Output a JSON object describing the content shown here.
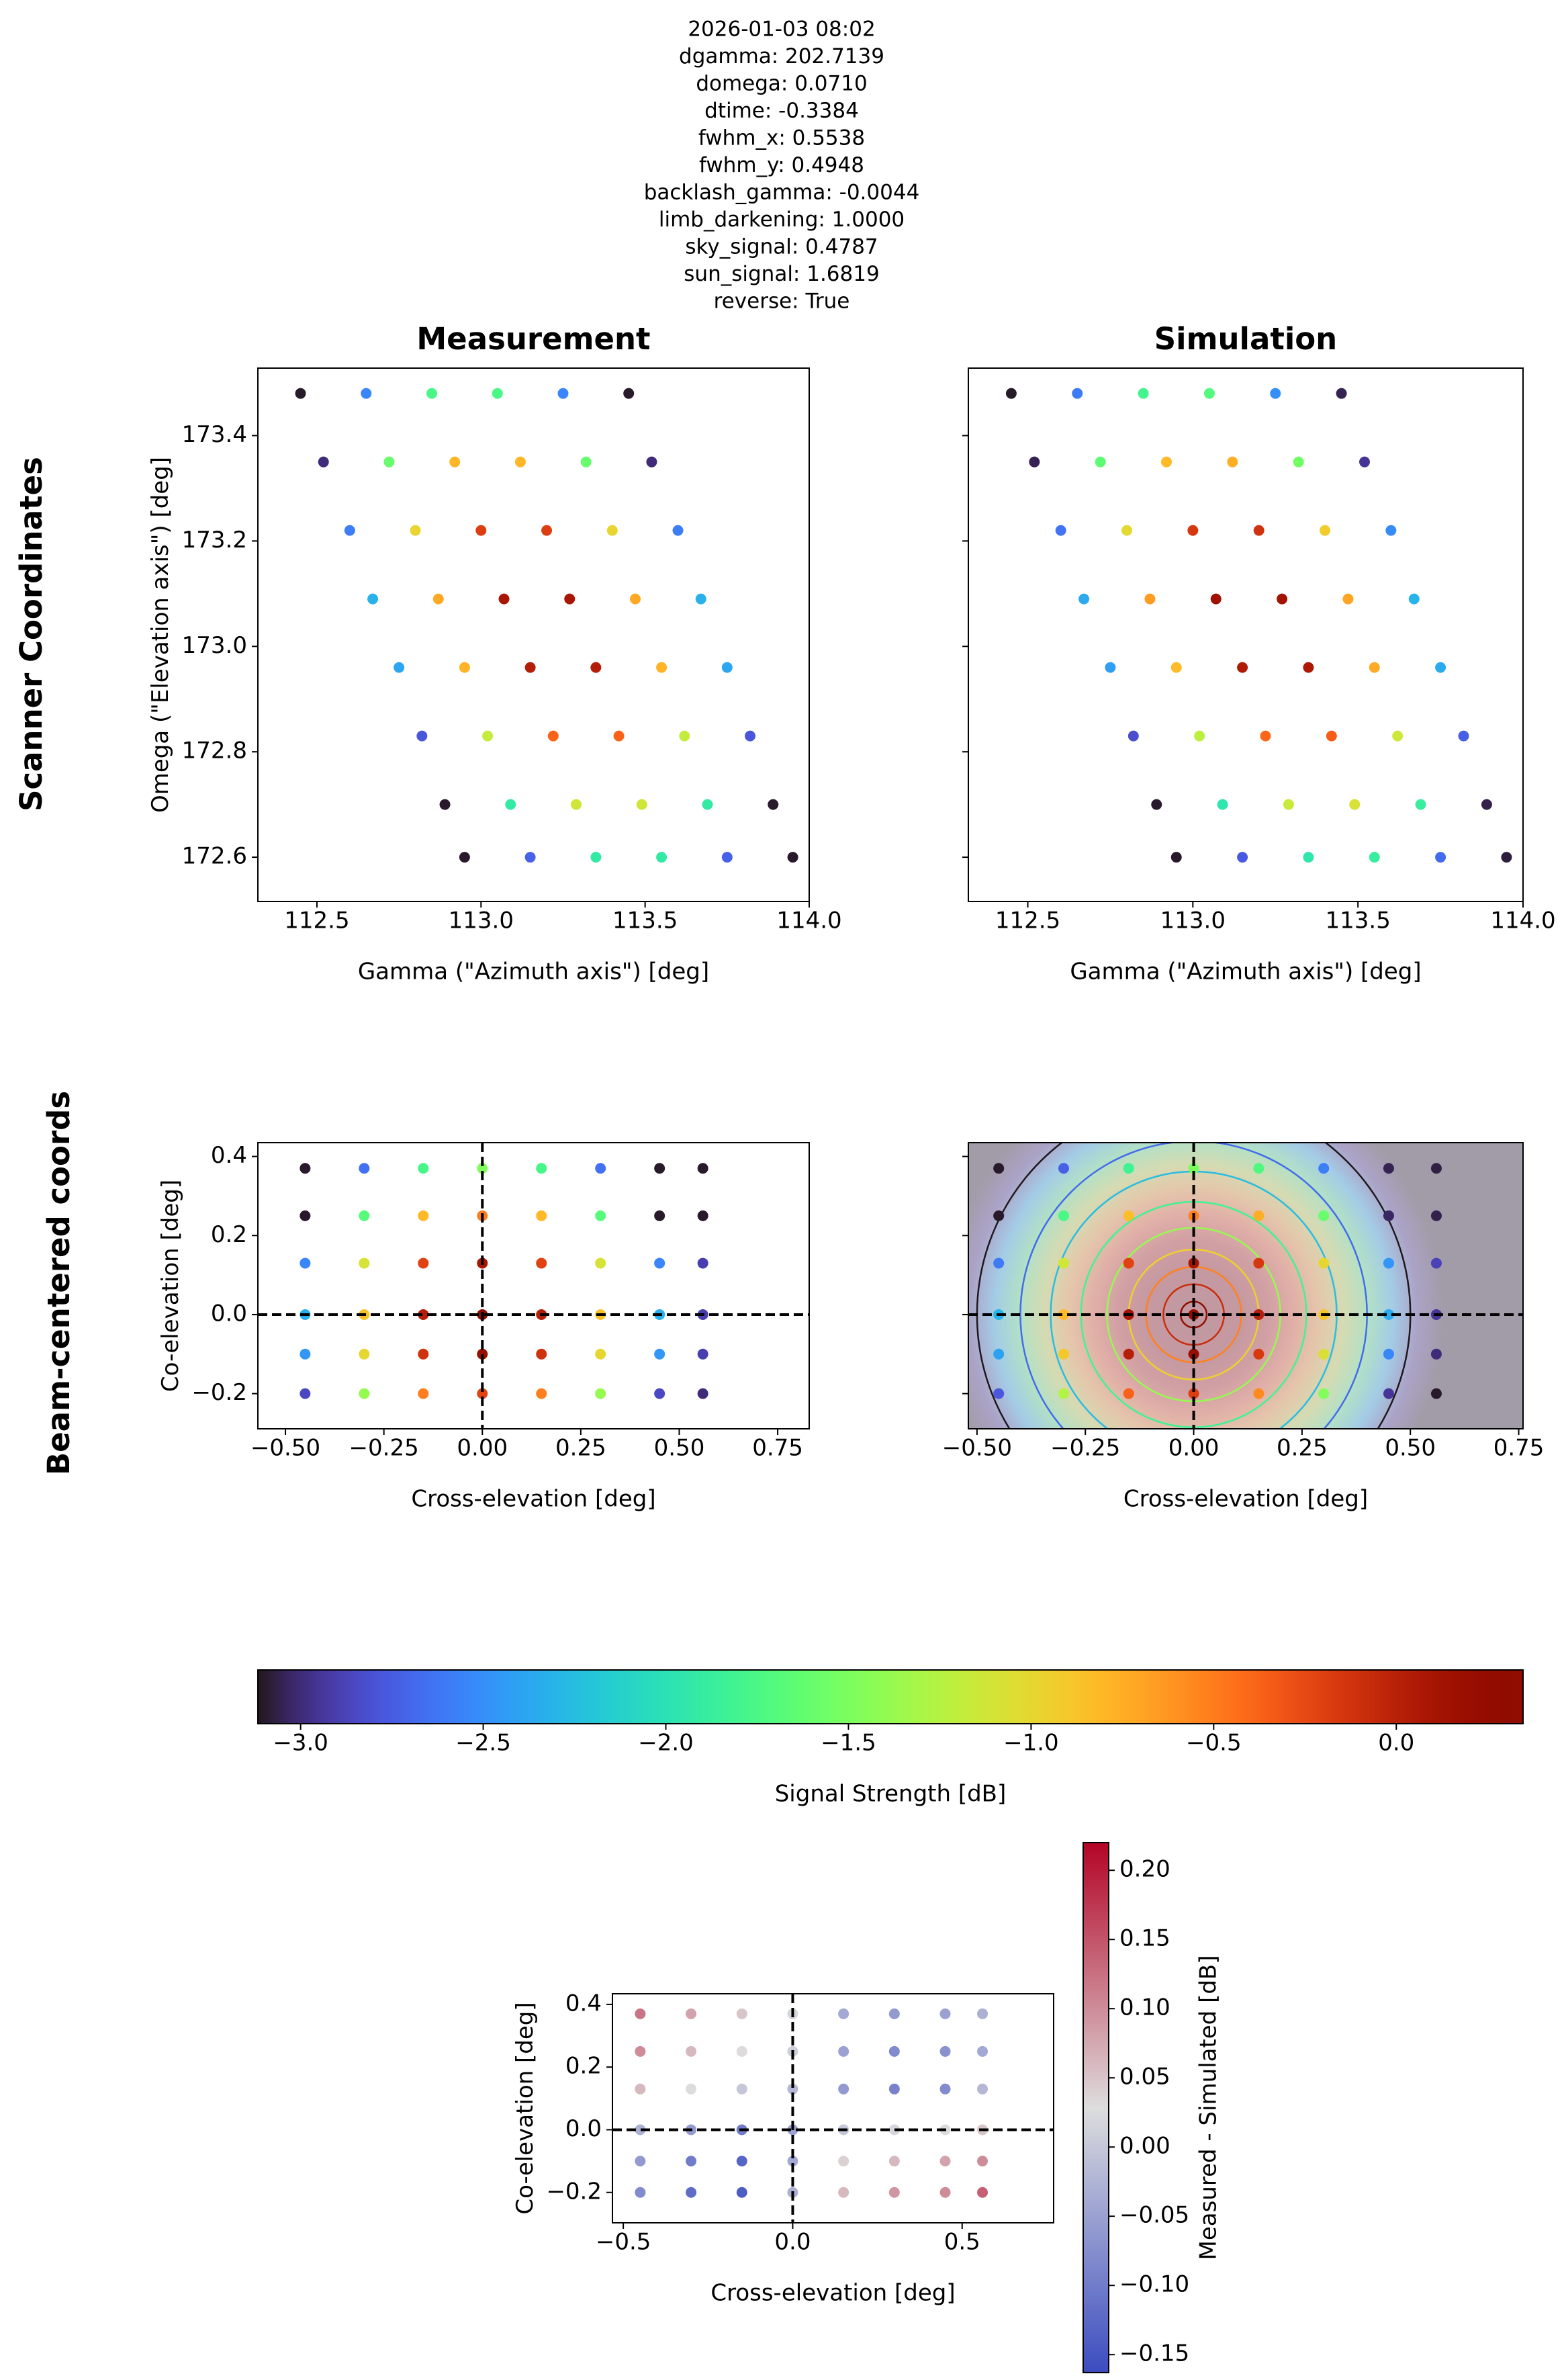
{
  "figure": {
    "suptitle": [
      "2026-01-03 08:02",
      "dgamma: 202.7139",
      "domega: 0.0710",
      "dtime: -0.3384",
      "fwhm_x: 0.5538",
      "fwhm_y: 0.4948",
      "backlash_gamma: -0.0044",
      "limb_darkening: 1.0000",
      "sky_signal: 0.4787",
      "sun_signal: 1.6819",
      "reverse: True"
    ],
    "row_labels": [
      "Scanner Coordinates",
      "Beam-centered coords"
    ]
  },
  "chart_data": [
    {
      "type": "scatter",
      "title": "Measurement",
      "xlabel": "Gamma (\"Azimuth axis\") [deg]",
      "ylabel": "Omega (\"Elevation axis\") [deg]",
      "colormap": "turbo",
      "xlim": [
        112.32,
        114.0
      ],
      "ylim": [
        172.516,
        173.528
      ],
      "xticks": [
        112.5,
        {
          "value": 113,
          "label": "113.0"
        },
        113.5,
        {
          "value": 114,
          "label": "114.0"
        }
      ],
      "yticks": [
        172.6,
        172.8,
        {
          "value": 173,
          "label": "173.0"
        },
        173.2,
        173.4
      ],
      "x": [
        112.45,
        112.65,
        112.85,
        113.05,
        113.25,
        113.45,
        112.52,
        112.72,
        112.92,
        113.12,
        113.32,
        113.52,
        112.6,
        112.8,
        113,
        113.2,
        113.4,
        113.6,
        112.67,
        112.87,
        113.07,
        113.27,
        113.47,
        113.67,
        112.75,
        112.95,
        113.15,
        113.35,
        113.55,
        113.75,
        112.82,
        113.02,
        113.22,
        113.42,
        113.62,
        113.82,
        112.89,
        113.09,
        113.29,
        113.49,
        113.69,
        113.89,
        112.95,
        113.15,
        113.35,
        113.55,
        113.75,
        113.95
      ],
      "y": [
        173.48,
        173.48,
        173.48,
        173.48,
        173.48,
        173.48,
        173.35,
        173.35,
        173.35,
        173.35,
        173.35,
        173.35,
        173.22,
        173.22,
        173.22,
        173.22,
        173.22,
        173.22,
        173.09,
        173.09,
        173.09,
        173.09,
        173.09,
        173.09,
        172.96,
        172.96,
        172.96,
        172.96,
        172.96,
        172.96,
        172.83,
        172.83,
        172.83,
        172.83,
        172.83,
        172.83,
        172.7,
        172.7,
        172.7,
        172.7,
        172.7,
        172.7,
        172.6,
        172.6,
        172.6,
        172.6,
        172.6,
        172.6
      ],
      "c": [
        -3.1,
        -2.55,
        -1.75,
        -1.75,
        -2.55,
        -3.1,
        -3.0,
        -1.6,
        -0.8,
        -0.8,
        -1.6,
        -3.0,
        -2.59,
        -0.99,
        -0.19,
        -0.19,
        -0.99,
        -2.59,
        -2.32,
        -0.72,
        0.08,
        0.08,
        -0.72,
        -2.32,
        -2.38,
        -0.78,
        0.02,
        0.02,
        -0.78,
        -2.38,
        -2.78,
        -1.18,
        -0.38,
        -0.38,
        -1.18,
        -2.78,
        -3.1,
        -1.92,
        -1.12,
        -1.12,
        -1.92,
        -3.1,
        -3.1,
        -2.72,
        -1.92,
        -1.92,
        -2.72,
        -3.1
      ]
    },
    {
      "type": "scatter",
      "title": "Simulation",
      "xlabel": "Gamma (\"Azimuth axis\") [deg]",
      "colormap": "turbo",
      "ytick_labels": false,
      "xlim": [
        112.32,
        114.0
      ],
      "ylim": [
        172.516,
        173.528
      ],
      "xticks": [
        112.5,
        {
          "value": 113,
          "label": "113.0"
        },
        113.5,
        {
          "value": 114,
          "label": "114.0"
        }
      ],
      "yticks": [
        172.6,
        172.8,
        173,
        173.2,
        173.4
      ],
      "x": [
        112.45,
        112.65,
        112.85,
        113.05,
        113.25,
        113.45,
        112.52,
        112.72,
        112.92,
        113.12,
        113.32,
        113.52,
        112.6,
        112.8,
        113,
        113.2,
        113.4,
        113.6,
        112.67,
        112.87,
        113.07,
        113.27,
        113.47,
        113.67,
        112.75,
        112.95,
        113.15,
        113.35,
        113.55,
        113.75,
        112.82,
        113.02,
        113.22,
        113.42,
        113.62,
        113.82,
        112.89,
        113.09,
        113.29,
        113.49,
        113.69,
        113.89,
        112.95,
        113.15,
        113.35,
        113.55,
        113.75,
        113.95
      ],
      "y": [
        173.48,
        173.48,
        173.48,
        173.48,
        173.48,
        173.48,
        173.35,
        173.35,
        173.35,
        173.35,
        173.35,
        173.35,
        173.22,
        173.22,
        173.22,
        173.22,
        173.22,
        173.22,
        173.09,
        173.09,
        173.09,
        173.09,
        173.09,
        173.09,
        172.96,
        172.96,
        172.96,
        172.96,
        172.96,
        172.96,
        172.83,
        172.83,
        172.83,
        172.83,
        172.83,
        172.83,
        172.7,
        172.7,
        172.7,
        172.7,
        172.7,
        172.7,
        172.6,
        172.6,
        172.6,
        172.6,
        172.6,
        172.6
      ],
      "c": [
        -3.1,
        -2.6,
        -1.8,
        -1.7,
        -2.5,
        -3.05,
        -3.05,
        -1.65,
        -0.82,
        -0.76,
        -1.55,
        -2.95,
        -2.64,
        -1.02,
        -0.15,
        -0.12,
        -0.93,
        -2.52,
        -2.36,
        -0.66,
        0.14,
        0.12,
        -0.7,
        -2.3,
        -2.42,
        -0.82,
        0.05,
        0.06,
        -0.74,
        -2.35,
        -2.82,
        -1.22,
        -0.4,
        -0.35,
        -1.14,
        -2.74,
        -3.1,
        -1.96,
        -1.16,
        -1.08,
        -1.88,
        -3.06,
        -3.1,
        -2.76,
        -1.96,
        -1.88,
        -2.68,
        -3.08
      ]
    },
    {
      "type": "scatter",
      "xlabel": "Cross-elevation [deg]",
      "ylabel": "Co-elevation [deg]",
      "colormap": "turbo",
      "crosshair": true,
      "xlim": [
        -0.57,
        0.83
      ],
      "ylim": [
        -0.289,
        0.435
      ],
      "xticks": [
        {
          "value": -0.5,
          "label": "−0.50"
        },
        {
          "value": -0.25,
          "label": "−0.25"
        },
        {
          "value": 0,
          "label": "0.00"
        },
        0.25,
        {
          "value": 0.5,
          "label": "0.50"
        },
        0.75
      ],
      "yticks": [
        {
          "value": -0.2,
          "label": "−0.2"
        },
        {
          "value": 0,
          "label": "0.0"
        },
        0.2,
        0.4
      ],
      "x": [
        -0.45,
        -0.3,
        -0.15,
        0,
        0.15,
        0.3,
        0.45,
        0.56,
        -0.45,
        -0.3,
        -0.15,
        0,
        0.15,
        0.3,
        0.45,
        0.56,
        -0.45,
        -0.3,
        -0.15,
        0,
        0.15,
        0.3,
        0.45,
        0.56,
        -0.45,
        -0.3,
        -0.15,
        0,
        0.15,
        0.3,
        0.45,
        0.56,
        -0.45,
        -0.3,
        -0.15,
        0,
        0.15,
        0.3,
        0.45,
        0.56,
        -0.45,
        -0.3,
        -0.15,
        0,
        0.15,
        0.3,
        0.45,
        0.56
      ],
      "y": [
        0.37,
        0.37,
        0.37,
        0.37,
        0.37,
        0.37,
        0.37,
        0.37,
        0.25,
        0.25,
        0.25,
        0.25,
        0.25,
        0.25,
        0.25,
        0.25,
        0.13,
        0.13,
        0.13,
        0.13,
        0.13,
        0.13,
        0.13,
        0.13,
        0,
        0,
        0,
        0,
        0,
        0,
        0,
        0,
        -0.1,
        -0.1,
        -0.1,
        -0.1,
        -0.1,
        -0.1,
        -0.1,
        -0.1,
        -0.2,
        -0.2,
        -0.2,
        -0.2,
        -0.2,
        -0.2,
        -0.2,
        -0.2
      ],
      "c": [
        -3.1,
        -2.65,
        -1.77,
        -1.48,
        -1.77,
        -2.65,
        -3.1,
        -3.1,
        -3.1,
        -1.68,
        -0.81,
        -0.51,
        -0.81,
        -1.68,
        -3.1,
        -3.1,
        -2.55,
        -1.09,
        -0.21,
        0.08,
        -0.21,
        -1.09,
        -2.55,
        -2.9,
        -2.33,
        -0.87,
        0.01,
        0.3,
        0.01,
        -0.87,
        -2.33,
        -2.9,
        -2.46,
        -1.0,
        -0.12,
        0.17,
        -0.12,
        -1.0,
        -2.46,
        -2.9,
        -2.85,
        -1.39,
        -0.51,
        -0.22,
        -0.51,
        -1.39,
        -2.85,
        -3.0
      ]
    },
    {
      "type": "scatter",
      "xlabel": "Cross-elevation [deg]",
      "colormap": "turbo",
      "crosshair": true,
      "model_background": true,
      "ytick_labels": false,
      "xlim": [
        -0.52,
        0.76
      ],
      "ylim": [
        -0.289,
        0.435
      ],
      "xticks": [
        {
          "value": -0.5,
          "label": "−0.50"
        },
        {
          "value": -0.25,
          "label": "−0.25"
        },
        {
          "value": 0,
          "label": "0.00"
        },
        0.25,
        {
          "value": 0.5,
          "label": "0.50"
        },
        0.75
      ],
      "yticks": [
        -0.2,
        0,
        0.2,
        0.4
      ],
      "x": [
        -0.45,
        -0.3,
        -0.15,
        0,
        0.15,
        0.3,
        0.45,
        0.56,
        -0.45,
        -0.3,
        -0.15,
        0,
        0.15,
        0.3,
        0.45,
        0.56,
        -0.45,
        -0.3,
        -0.15,
        0,
        0.15,
        0.3,
        0.45,
        0.56,
        -0.45,
        -0.3,
        -0.15,
        0,
        0.15,
        0.3,
        0.45,
        0.56,
        -0.45,
        -0.3,
        -0.15,
        0,
        0.15,
        0.3,
        0.45,
        0.56,
        -0.45,
        -0.3,
        -0.15,
        0,
        0.15,
        0.3,
        0.45,
        0.56
      ],
      "y": [
        0.37,
        0.37,
        0.37,
        0.37,
        0.37,
        0.37,
        0.37,
        0.37,
        0.25,
        0.25,
        0.25,
        0.25,
        0.25,
        0.25,
        0.25,
        0.25,
        0.13,
        0.13,
        0.13,
        0.13,
        0.13,
        0.13,
        0.13,
        0.13,
        0,
        0,
        0,
        0,
        0,
        0,
        0,
        0,
        -0.1,
        -0.1,
        -0.1,
        -0.1,
        -0.1,
        -0.1,
        -0.1,
        -0.1,
        -0.2,
        -0.2,
        -0.2,
        -0.2,
        -0.2,
        -0.2,
        -0.2,
        -0.2
      ],
      "c": [
        -3.1,
        -2.73,
        -1.82,
        -1.5,
        -1.73,
        -2.59,
        -3.05,
        -3.07,
        -3.1,
        -1.74,
        -0.84,
        -0.52,
        -0.76,
        -1.6,
        -3.03,
        -3.06,
        -2.61,
        -1.12,
        -0.21,
        0.1,
        -0.15,
        -1.0,
        -2.47,
        -2.88,
        -2.3,
        -0.81,
        0.11,
        0.35,
        0.01,
        -0.89,
        -2.36,
        -2.95,
        -2.4,
        -0.9,
        0.01,
        0.21,
        -0.16,
        -1.06,
        -2.54,
        -3.0,
        -2.77,
        -1.27,
        -0.37,
        -0.19,
        -0.57,
        -1.48,
        -2.95,
        -3.1
      ]
    },
    {
      "type": "colorbar",
      "orientation": "horizontal",
      "colormap": "turbo",
      "label": "Signal Strength [dB]",
      "clim": [
        -3.117,
        0.347
      ],
      "ticks": [
        {
          "value": -3,
          "label": "−3.0"
        },
        {
          "value": -2.5,
          "label": "−2.5"
        },
        {
          "value": -2,
          "label": "−2.0"
        },
        {
          "value": -1.5,
          "label": "−1.5"
        },
        {
          "value": -1,
          "label": "−1.0"
        },
        {
          "value": -0.5,
          "label": "−0.5"
        },
        {
          "value": 0,
          "label": "0.0"
        }
      ]
    },
    {
      "type": "scatter",
      "xlabel": "Cross-elevation [deg]",
      "ylabel": "Co-elevation [deg]",
      "colormap": "coolwarm",
      "crosshair": true,
      "xlim": [
        -0.532,
        0.77
      ],
      "ylim": [
        -0.297,
        0.434
      ],
      "xticks": [
        {
          "value": -0.5,
          "label": "−0.5"
        },
        {
          "value": 0,
          "label": "0.0"
        },
        0.5
      ],
      "yticks": [
        {
          "value": -0.2,
          "label": "−0.2"
        },
        {
          "value": 0,
          "label": "0.0"
        },
        0.2,
        0.4
      ],
      "x": [
        -0.45,
        -0.3,
        -0.15,
        0,
        0.15,
        0.3,
        0.45,
        0.56,
        -0.45,
        -0.3,
        -0.15,
        0,
        0.15,
        0.3,
        0.45,
        0.56,
        -0.45,
        -0.3,
        -0.15,
        0,
        0.15,
        0.3,
        0.45,
        0.56,
        -0.45,
        -0.3,
        -0.15,
        0,
        0.15,
        0.3,
        0.45,
        0.56,
        -0.45,
        -0.3,
        -0.15,
        0,
        0.15,
        0.3,
        0.45,
        0.56,
        -0.45,
        -0.3,
        -0.15,
        0,
        0.15,
        0.3,
        0.45,
        0.56
      ],
      "y": [
        0.37,
        0.37,
        0.37,
        0.37,
        0.37,
        0.37,
        0.37,
        0.37,
        0.25,
        0.25,
        0.25,
        0.25,
        0.25,
        0.25,
        0.25,
        0.25,
        0.13,
        0.13,
        0.13,
        0.13,
        0.13,
        0.13,
        0.13,
        0.13,
        0,
        0,
        0,
        0,
        0,
        0,
        0,
        0,
        -0.1,
        -0.1,
        -0.1,
        -0.1,
        -0.1,
        -0.1,
        -0.1,
        -0.1,
        -0.2,
        -0.2,
        -0.2,
        -0.2,
        -0.2,
        -0.2,
        -0.2,
        -0.2
      ],
      "c": [
        0.12,
        0.08,
        0.05,
        0.02,
        -0.04,
        -0.06,
        -0.05,
        -0.03,
        0.1,
        0.06,
        0.03,
        0.01,
        -0.05,
        -0.08,
        -0.07,
        -0.04,
        0.06,
        0.03,
        0,
        -0.02,
        -0.06,
        -0.09,
        -0.08,
        -0.02,
        -0.03,
        -0.06,
        -0.1,
        -0.05,
        0,
        0.02,
        0.03,
        0.05,
        -0.06,
        -0.1,
        -0.13,
        -0.04,
        0.04,
        0.06,
        0.08,
        0.1,
        -0.08,
        -0.12,
        -0.14,
        -0.03,
        0.06,
        0.09,
        0.1,
        0.14
      ]
    },
    {
      "type": "colorbar",
      "orientation": "vertical",
      "colormap": "coolwarm",
      "label": "Measured - Simulated [dB]",
      "clim": [
        -0.163,
        0.22
      ],
      "ticks": [
        {
          "value": -0.15,
          "label": "−0.15"
        },
        {
          "value": -0.1,
          "label": "−0.10"
        },
        {
          "value": -0.05,
          "label": "−0.05"
        },
        {
          "value": 0,
          "label": "0.00"
        },
        0.05,
        {
          "value": 0.1,
          "label": "0.10"
        },
        0.15,
        {
          "value": 0.2,
          "label": "0.20"
        }
      ]
    }
  ]
}
